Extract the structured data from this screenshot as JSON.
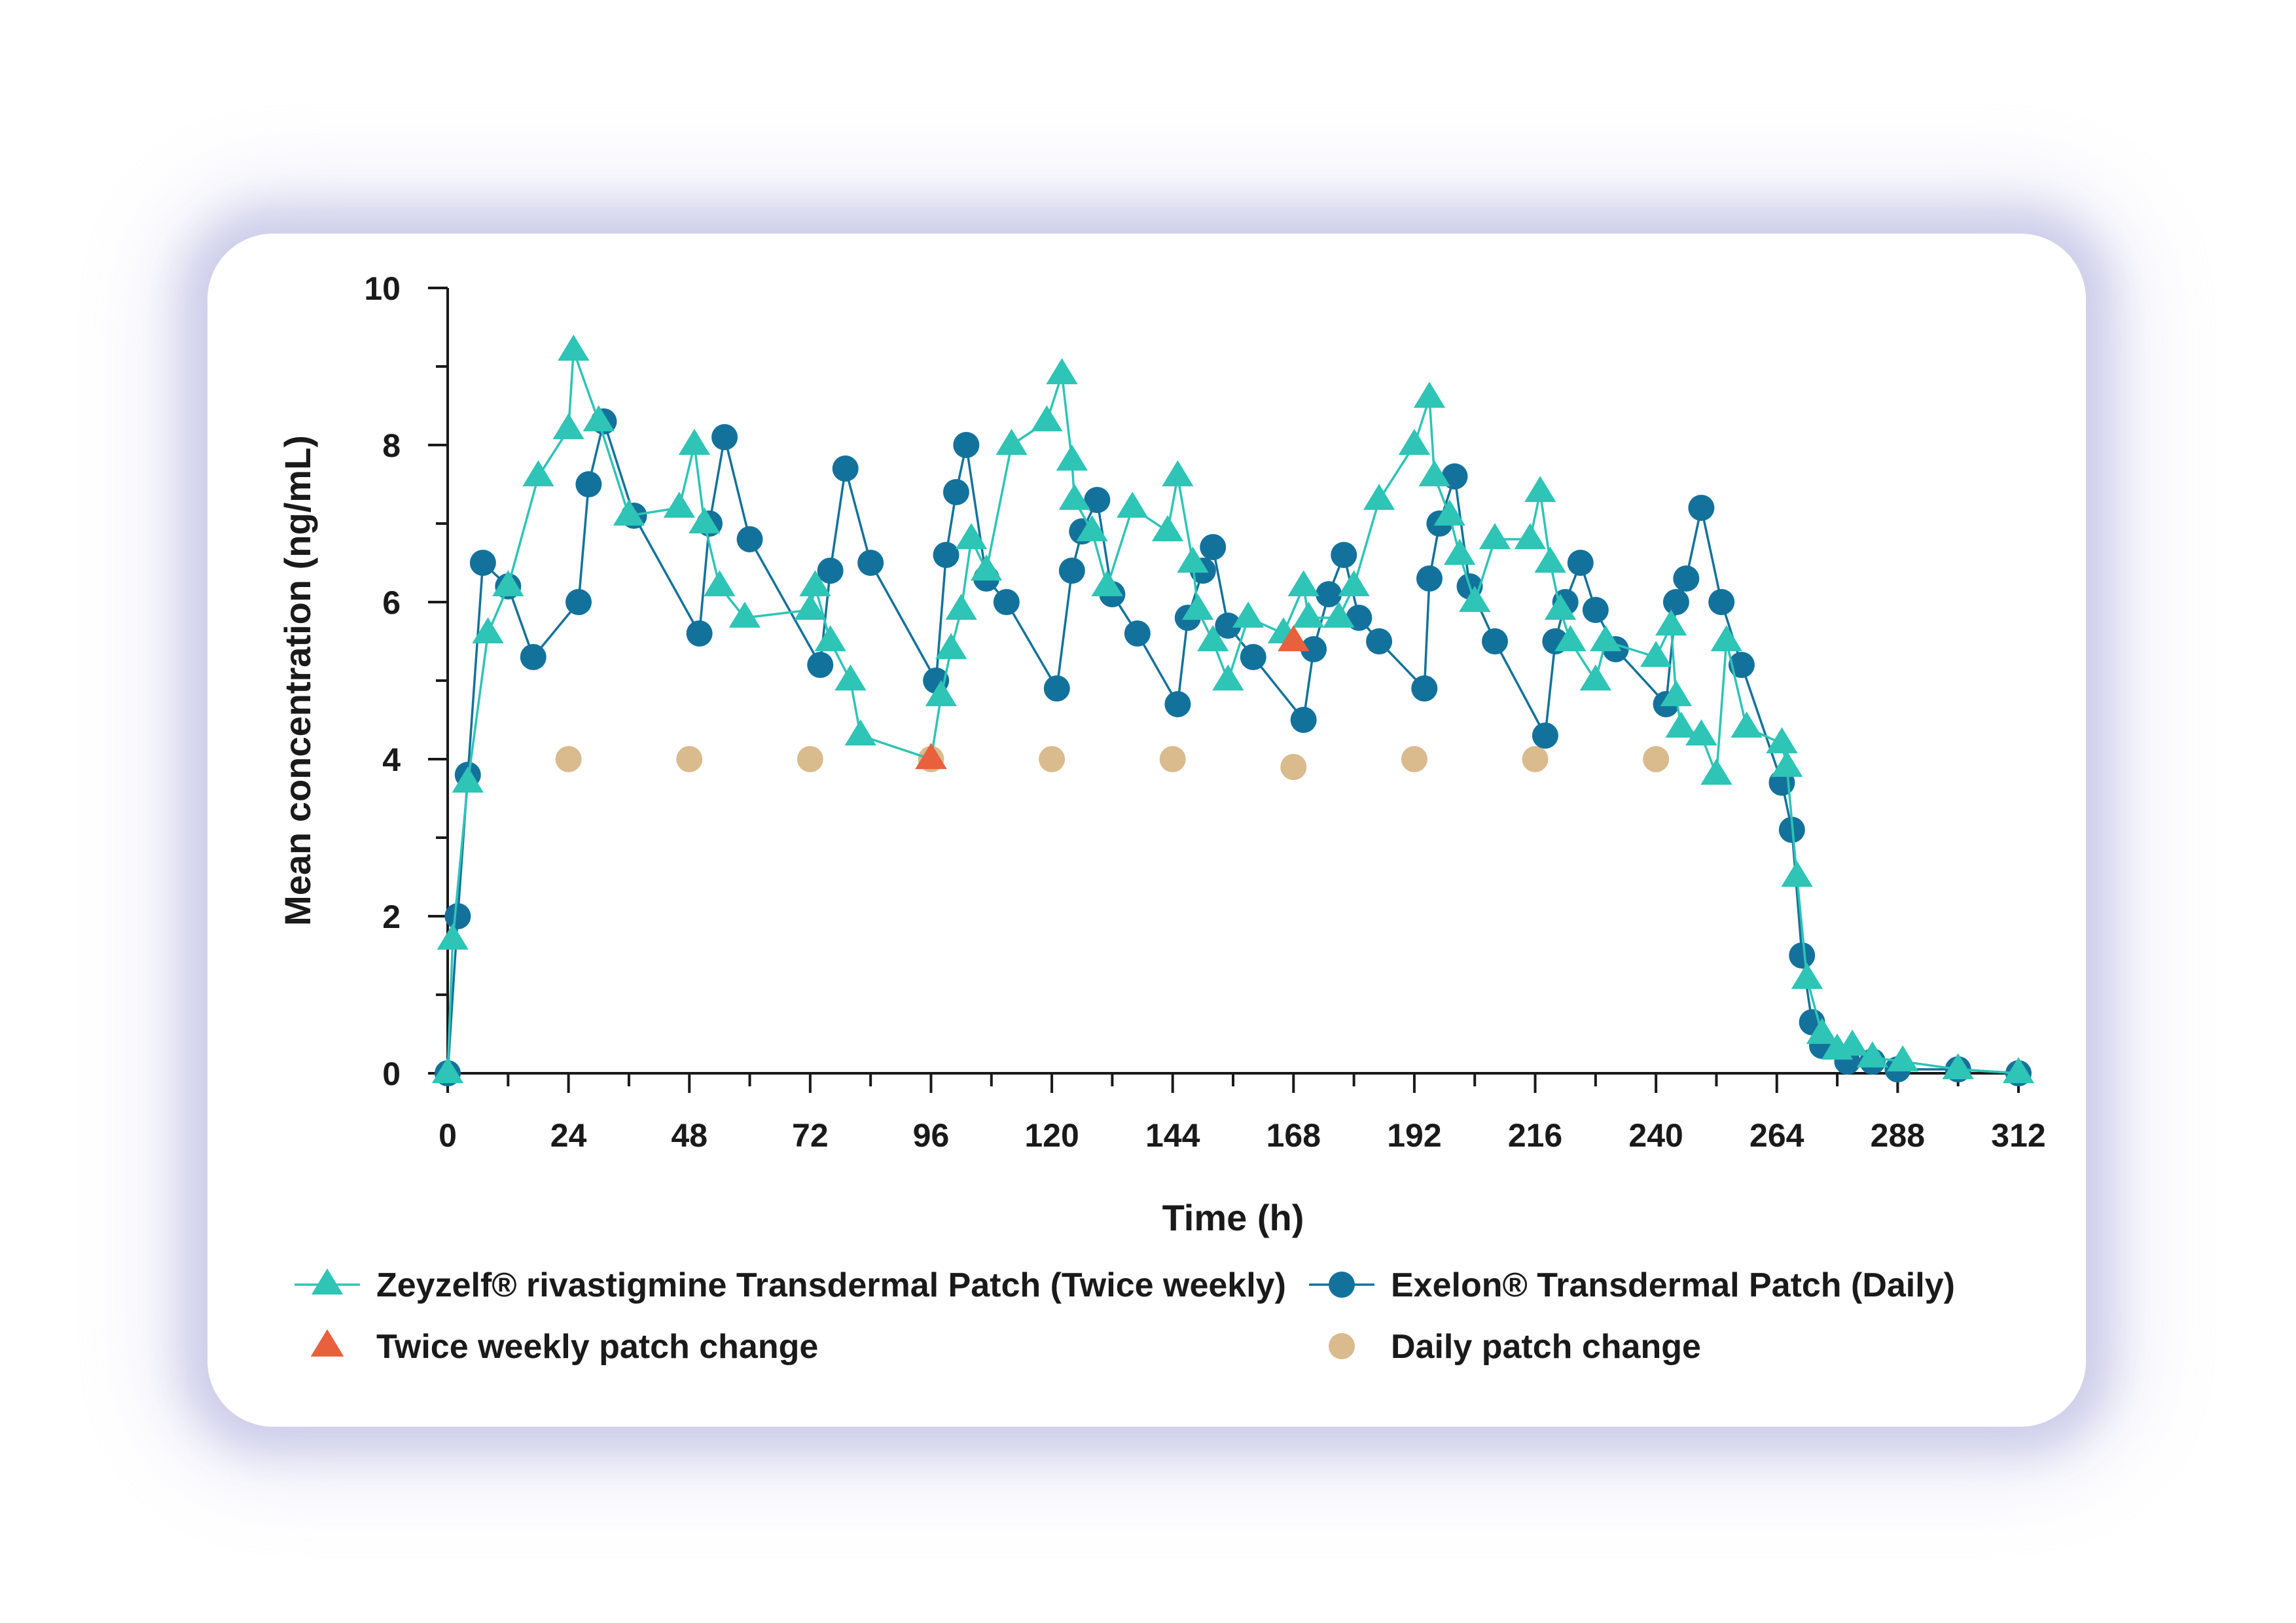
{
  "chart_data": {
    "type": "scatter",
    "xlabel": "Time (h)",
    "ylabel": "Mean concentration (ng/mL)",
    "xlim": [
      0,
      312
    ],
    "ylim": [
      0,
      10
    ],
    "x_ticks": [
      "0",
      "24",
      "48",
      "72",
      "96",
      "120",
      "144",
      "168",
      "192",
      "216",
      "240",
      "264",
      "288",
      "312"
    ],
    "y_ticks": [
      "0",
      "2",
      "4",
      "6",
      "8",
      "10"
    ],
    "grid": false,
    "legend_position": "bottom",
    "series": [
      {
        "name": "Zeyzelf® rivastigmine Transdermal Patch (Twice weekly)",
        "marker": "triangle",
        "line": true,
        "color": "#2ec4b6",
        "points": [
          [
            0,
            0
          ],
          [
            1,
            1.7
          ],
          [
            4,
            3.7
          ],
          [
            8,
            5.6
          ],
          [
            12,
            6.2
          ],
          [
            18,
            7.6
          ],
          [
            24,
            8.2
          ],
          [
            25,
            9.2
          ],
          [
            30,
            8.3
          ],
          [
            36,
            7.1
          ],
          [
            46,
            7.2
          ],
          [
            49,
            8.0
          ],
          [
            51,
            7.0
          ],
          [
            54,
            6.2
          ],
          [
            59,
            5.8
          ],
          [
            72,
            5.9
          ],
          [
            73,
            6.2
          ],
          [
            76,
            5.5
          ],
          [
            80,
            5.0
          ],
          [
            82,
            4.3
          ],
          [
            96,
            4.0
          ],
          [
            98,
            4.8
          ],
          [
            100,
            5.4
          ],
          [
            102,
            5.9
          ],
          [
            104,
            6.8
          ],
          [
            107,
            6.4
          ],
          [
            112,
            8.0
          ],
          [
            119,
            8.3
          ],
          [
            122,
            8.9
          ],
          [
            124,
            7.8
          ],
          [
            124.5,
            7.3
          ],
          [
            128,
            6.9
          ],
          [
            131,
            6.2
          ],
          [
            136,
            7.2
          ],
          [
            143,
            6.9
          ],
          [
            145,
            7.6
          ],
          [
            148,
            6.5
          ],
          [
            149,
            5.9
          ],
          [
            152,
            5.5
          ],
          [
            155,
            5.0
          ],
          [
            159,
            5.8
          ],
          [
            166,
            5.6
          ],
          [
            170,
            6.2
          ],
          [
            171,
            5.8
          ],
          [
            177,
            5.8
          ],
          [
            180,
            6.2
          ],
          [
            185,
            7.3
          ],
          [
            192,
            8.0
          ],
          [
            195,
            8.6
          ],
          [
            196,
            7.6
          ],
          [
            199,
            7.1
          ],
          [
            201,
            6.6
          ],
          [
            204,
            6.0
          ],
          [
            208,
            6.8
          ],
          [
            215,
            6.8
          ],
          [
            217,
            7.4
          ],
          [
            219,
            6.5
          ],
          [
            221,
            5.9
          ],
          [
            223,
            5.5
          ],
          [
            228,
            5.0
          ],
          [
            230,
            5.5
          ],
          [
            240,
            5.3
          ],
          [
            243,
            5.7
          ],
          [
            244,
            4.8
          ],
          [
            245,
            4.4
          ],
          [
            249,
            4.3
          ],
          [
            252,
            3.8
          ],
          [
            254,
            5.5
          ],
          [
            258,
            4.4
          ],
          [
            265,
            4.2
          ],
          [
            266,
            3.9
          ],
          [
            268,
            2.5
          ],
          [
            270,
            1.2
          ],
          [
            273,
            0.5
          ],
          [
            276,
            0.3
          ],
          [
            279,
            0.35
          ],
          [
            283,
            0.2
          ],
          [
            289,
            0.15
          ],
          [
            300,
            0.05
          ],
          [
            312,
            0.0
          ]
        ]
      },
      {
        "name": "Exelon® Transdermal Patch (Daily)",
        "marker": "circle",
        "line": true,
        "color": "#13729b",
        "points": [
          [
            0,
            0
          ],
          [
            2,
            2.0
          ],
          [
            4,
            3.8
          ],
          [
            7,
            6.5
          ],
          [
            12,
            6.2
          ],
          [
            17,
            5.3
          ],
          [
            26,
            6.0
          ],
          [
            28,
            7.5
          ],
          [
            31,
            8.3
          ],
          [
            37,
            7.1
          ],
          [
            50,
            5.6
          ],
          [
            52,
            7.0
          ],
          [
            55,
            8.1
          ],
          [
            60,
            6.8
          ],
          [
            74,
            5.2
          ],
          [
            76,
            6.4
          ],
          [
            79,
            7.7
          ],
          [
            84,
            6.5
          ],
          [
            97,
            5.0
          ],
          [
            99,
            6.6
          ],
          [
            101,
            7.4
          ],
          [
            103,
            8.0
          ],
          [
            107,
            6.3
          ],
          [
            111,
            6.0
          ],
          [
            121,
            4.9
          ],
          [
            124,
            6.4
          ],
          [
            126,
            6.9
          ],
          [
            129,
            7.3
          ],
          [
            132,
            6.1
          ],
          [
            137,
            5.6
          ],
          [
            145,
            4.7
          ],
          [
            147,
            5.8
          ],
          [
            150,
            6.4
          ],
          [
            152,
            6.7
          ],
          [
            155,
            5.7
          ],
          [
            160,
            5.3
          ],
          [
            170,
            4.5
          ],
          [
            172,
            5.4
          ],
          [
            175,
            6.1
          ],
          [
            178,
            6.6
          ],
          [
            181,
            5.8
          ],
          [
            185,
            5.5
          ],
          [
            194,
            4.9
          ],
          [
            195,
            6.3
          ],
          [
            197,
            7.0
          ],
          [
            200,
            7.6
          ],
          [
            203,
            6.2
          ],
          [
            208,
            5.5
          ],
          [
            218,
            4.3
          ],
          [
            220,
            5.5
          ],
          [
            222,
            6.0
          ],
          [
            225,
            6.5
          ],
          [
            228,
            5.9
          ],
          [
            232,
            5.4
          ],
          [
            242,
            4.7
          ],
          [
            244,
            6.0
          ],
          [
            246,
            6.3
          ],
          [
            249,
            7.2
          ],
          [
            253,
            6.0
          ],
          [
            257,
            5.2
          ],
          [
            265,
            3.7
          ],
          [
            267,
            3.1
          ],
          [
            269,
            1.5
          ],
          [
            271,
            0.65
          ],
          [
            273,
            0.35
          ],
          [
            278,
            0.15
          ],
          [
            283,
            0.15
          ],
          [
            288,
            0.05
          ],
          [
            300,
            0.05
          ],
          [
            312,
            0.0
          ]
        ]
      },
      {
        "name": "Twice weekly patch change",
        "marker": "triangle",
        "line": false,
        "color": "#e8613c",
        "points": [
          [
            96,
            4.0
          ],
          [
            168,
            5.5
          ]
        ]
      },
      {
        "name": "Daily patch change",
        "marker": "circle",
        "line": false,
        "color": "#d9bb8d",
        "points": [
          [
            24,
            4.0
          ],
          [
            48,
            4.0
          ],
          [
            72,
            4.0
          ],
          [
            96,
            4.0
          ],
          [
            120,
            4.0
          ],
          [
            144,
            4.0
          ],
          [
            168,
            3.9
          ],
          [
            192,
            4.0
          ],
          [
            216,
            4.0
          ],
          [
            240,
            4.0
          ]
        ]
      }
    ]
  }
}
